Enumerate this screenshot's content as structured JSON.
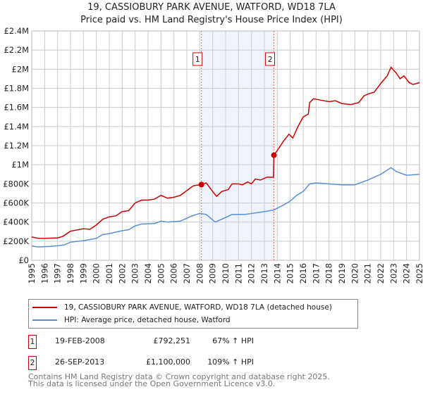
{
  "title": "19, CASSIOBURY PARK AVENUE, WATFORD, WD18 7LA",
  "subtitle": "Price paid vs. HM Land Registry's House Price Index (HPI)",
  "chart_data": {
    "type": "line",
    "xlim": [
      1995,
      2025
    ],
    "ylim": [
      0,
      2400000
    ],
    "x_ticks": [
      "1995",
      "1996",
      "1997",
      "1998",
      "1999",
      "2000",
      "2001",
      "2002",
      "2003",
      "2004",
      "2005",
      "2006",
      "2007",
      "2008",
      "2009",
      "2010",
      "2011",
      "2012",
      "2013",
      "2014",
      "2015",
      "2016",
      "2017",
      "2018",
      "2019",
      "2020",
      "2021",
      "2022",
      "2023",
      "2024",
      "2025"
    ],
    "y_ticks": [
      {
        "v": 0,
        "label": "£0"
      },
      {
        "v": 200000,
        "label": "£200K"
      },
      {
        "v": 400000,
        "label": "£400K"
      },
      {
        "v": 600000,
        "label": "£600K"
      },
      {
        "v": 800000,
        "label": "£800K"
      },
      {
        "v": 1000000,
        "label": "£1M"
      },
      {
        "v": 1200000,
        "label": "£1.2M"
      },
      {
        "v": 1400000,
        "label": "£1.4M"
      },
      {
        "v": 1600000,
        "label": "£1.6M"
      },
      {
        "v": 1800000,
        "label": "£1.8M"
      },
      {
        "v": 2000000,
        "label": "£2M"
      },
      {
        "v": 2200000,
        "label": "£2.2M"
      },
      {
        "v": 2400000,
        "label": "£2.4M"
      }
    ],
    "shaded_range": [
      2008.13,
      2013.74
    ],
    "series": [
      {
        "name": "19, CASSIOBURY PARK AVENUE, WATFORD, WD18 7LA (detached house)",
        "color": "#cc0000",
        "points": [
          [
            1995,
            245000
          ],
          [
            1995.5,
            230000
          ],
          [
            1996,
            230000
          ],
          [
            1997,
            235000
          ],
          [
            1997.4,
            250000
          ],
          [
            1998,
            305000
          ],
          [
            1999,
            330000
          ],
          [
            1999.5,
            325000
          ],
          [
            2000,
            370000
          ],
          [
            2000.5,
            430000
          ],
          [
            2001,
            455000
          ],
          [
            2001.5,
            465000
          ],
          [
            2002,
            510000
          ],
          [
            2002.5,
            520000
          ],
          [
            2003,
            600000
          ],
          [
            2003.5,
            630000
          ],
          [
            2004,
            630000
          ],
          [
            2004.5,
            640000
          ],
          [
            2005,
            680000
          ],
          [
            2005.5,
            650000
          ],
          [
            2006,
            660000
          ],
          [
            2006.5,
            680000
          ],
          [
            2007,
            730000
          ],
          [
            2007.5,
            780000
          ],
          [
            2008.13,
            792251
          ],
          [
            2008.5,
            810000
          ],
          [
            2009,
            720000
          ],
          [
            2009.3,
            670000
          ],
          [
            2009.7,
            720000
          ],
          [
            2010.2,
            740000
          ],
          [
            2010.5,
            800000
          ],
          [
            2011,
            800000
          ],
          [
            2011.3,
            790000
          ],
          [
            2011.7,
            820000
          ],
          [
            2012,
            800000
          ],
          [
            2012.3,
            850000
          ],
          [
            2012.7,
            840000
          ],
          [
            2013.2,
            870000
          ],
          [
            2013.7,
            870000
          ],
          [
            2013.74,
            1100000
          ],
          [
            2014,
            1150000
          ],
          [
            2014.5,
            1250000
          ],
          [
            2014.9,
            1320000
          ],
          [
            2015.2,
            1280000
          ],
          [
            2015.6,
            1400000
          ],
          [
            2016,
            1500000
          ],
          [
            2016.4,
            1530000
          ],
          [
            2016.5,
            1650000
          ],
          [
            2016.8,
            1690000
          ],
          [
            2017.2,
            1680000
          ],
          [
            2018,
            1660000
          ],
          [
            2018.5,
            1670000
          ],
          [
            2019,
            1640000
          ],
          [
            2019.7,
            1630000
          ],
          [
            2020.3,
            1650000
          ],
          [
            2020.7,
            1720000
          ],
          [
            2021,
            1740000
          ],
          [
            2021.5,
            1760000
          ],
          [
            2022,
            1850000
          ],
          [
            2022.5,
            1930000
          ],
          [
            2022.8,
            2020000
          ],
          [
            2023.2,
            1960000
          ],
          [
            2023.5,
            1900000
          ],
          [
            2023.8,
            1930000
          ],
          [
            2024.2,
            1860000
          ],
          [
            2024.5,
            1840000
          ],
          [
            2025,
            1860000
          ]
        ]
      },
      {
        "name": "HPI: Average price, detached house, Watford",
        "color": "#5b8fd6",
        "points": [
          [
            1995,
            150000
          ],
          [
            1995.5,
            140000
          ],
          [
            1996.5,
            145000
          ],
          [
            1997.5,
            160000
          ],
          [
            1998,
            190000
          ],
          [
            1999,
            205000
          ],
          [
            2000,
            230000
          ],
          [
            2000.5,
            270000
          ],
          [
            2001,
            280000
          ],
          [
            2002,
            310000
          ],
          [
            2002.5,
            320000
          ],
          [
            2003,
            360000
          ],
          [
            2003.5,
            380000
          ],
          [
            2004.5,
            385000
          ],
          [
            2005,
            410000
          ],
          [
            2005.5,
            400000
          ],
          [
            2006.5,
            410000
          ],
          [
            2007,
            440000
          ],
          [
            2007.5,
            470000
          ],
          [
            2008,
            490000
          ],
          [
            2008.5,
            480000
          ],
          [
            2009.2,
            400000
          ],
          [
            2009.7,
            430000
          ],
          [
            2010.5,
            480000
          ],
          [
            2011.5,
            480000
          ],
          [
            2012,
            490000
          ],
          [
            2012.5,
            500000
          ],
          [
            2013,
            510000
          ],
          [
            2013.7,
            525000
          ],
          [
            2014.5,
            580000
          ],
          [
            2015,
            620000
          ],
          [
            2015.5,
            680000
          ],
          [
            2016,
            720000
          ],
          [
            2016.5,
            800000
          ],
          [
            2017,
            810000
          ],
          [
            2018,
            800000
          ],
          [
            2019,
            790000
          ],
          [
            2020,
            790000
          ],
          [
            2021,
            840000
          ],
          [
            2022,
            900000
          ],
          [
            2022.8,
            970000
          ],
          [
            2023.2,
            930000
          ],
          [
            2024,
            890000
          ],
          [
            2025,
            900000
          ]
        ]
      }
    ],
    "sales": [
      {
        "label": "1",
        "x": 2008.13,
        "y": 792251
      },
      {
        "label": "2",
        "x": 2013.74,
        "y": 1100000
      }
    ]
  },
  "transactions": [
    {
      "num": "1",
      "date": "19-FEB-2008",
      "price": "£792,251",
      "hpi": "67% ↑ HPI"
    },
    {
      "num": "2",
      "date": "26-SEP-2013",
      "price": "£1,100,000",
      "hpi": "109% ↑ HPI"
    }
  ],
  "footer": {
    "line1": "Contains HM Land Registry data © Crown copyright and database right 2025.",
    "line2": "This data is licensed under the Open Government Licence v3.0."
  }
}
